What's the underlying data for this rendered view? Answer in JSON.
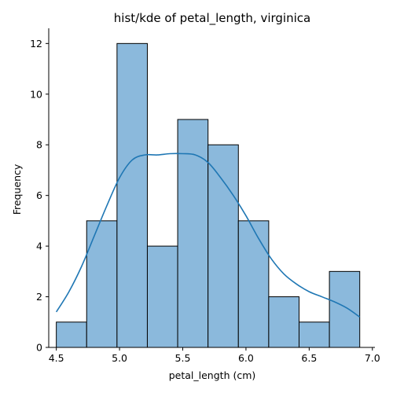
{
  "chart_data": {
    "type": "bar",
    "title": "hist/kde of petal_length, virginica",
    "xlabel": "petal_length (cm)",
    "ylabel": "Frequency",
    "xlim": [
      4.44,
      7.02
    ],
    "ylim": [
      0,
      12.6
    ],
    "grid": false,
    "legend": "none",
    "bar_color": "#8bb9dc",
    "edge_color": "#000000",
    "kde_color": "#1f77b4",
    "x_ticks": [
      4.5,
      5.0,
      5.5,
      6.0,
      6.5,
      7.0
    ],
    "x_tick_labels": [
      "4.5",
      "5.0",
      "5.5",
      "6.0",
      "6.5",
      "7.0"
    ],
    "y_ticks": [
      0,
      2,
      4,
      6,
      8,
      10,
      12
    ],
    "y_tick_labels": [
      "0",
      "2",
      "4",
      "6",
      "8",
      "10",
      "12"
    ],
    "bin_edges": [
      4.5,
      4.74,
      4.98,
      5.22,
      5.46,
      5.7,
      5.94,
      6.18,
      6.42,
      6.66,
      6.9
    ],
    "values": [
      1,
      5,
      12,
      4,
      9,
      8,
      5,
      2,
      1,
      3
    ],
    "kde": {
      "x": [
        4.5,
        4.6,
        4.7,
        4.8,
        4.9,
        5.0,
        5.1,
        5.2,
        5.3,
        5.4,
        5.5,
        5.6,
        5.7,
        5.8,
        5.9,
        6.0,
        6.1,
        6.2,
        6.3,
        6.4,
        6.5,
        6.6,
        6.7,
        6.8,
        6.9
      ],
      "y": [
        1.4,
        2.2,
        3.2,
        4.4,
        5.6,
        6.7,
        7.4,
        7.6,
        7.6,
        7.65,
        7.65,
        7.6,
        7.3,
        6.7,
        6.0,
        5.2,
        4.3,
        3.5,
        2.9,
        2.5,
        2.2,
        2.0,
        1.8,
        1.55,
        1.2
      ]
    }
  }
}
